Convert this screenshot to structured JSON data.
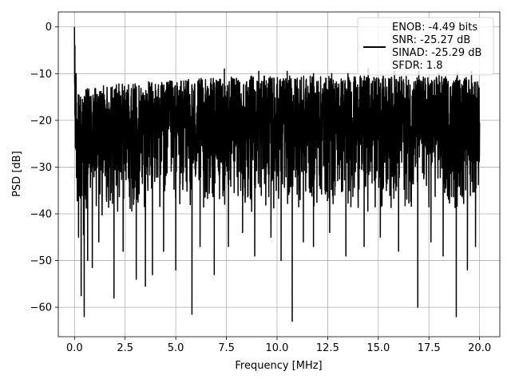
{
  "chart_data": {
    "type": "line",
    "xlabel": "Frequency [MHz]",
    "ylabel": "PSD [dB]",
    "xlim": [
      -0.8,
      21.0
    ],
    "ylim": [
      -66.3,
      3.2
    ],
    "xticks": [
      0.0,
      2.5,
      5.0,
      7.5,
      10.0,
      12.5,
      15.0,
      17.5,
      20.0
    ],
    "xtick_labels": [
      "0.0",
      "2.5",
      "5.0",
      "7.5",
      "10.0",
      "12.5",
      "15.0",
      "17.5",
      "20.0"
    ],
    "yticks": [
      0,
      -10,
      -20,
      -30,
      -40,
      -50,
      -60
    ],
    "ytick_labels": [
      "0",
      "−10",
      "−20",
      "−30",
      "−40",
      "−50",
      "−60"
    ],
    "grid": true,
    "legend_position": "top-right",
    "legend_lines": [
      "ENOB: -4.49 bits",
      "SNR: -25.27 dB",
      "SINAD: -25.29 dB",
      "SFDR: 1.8"
    ],
    "series": [
      {
        "color": "#000000",
        "x": [
          0.0,
          0.02,
          0.05,
          0.1,
          0.2,
          0.4,
          0.6,
          1.0,
          2.0,
          3.0,
          4.0,
          5.0,
          6.0,
          7.0,
          8.0,
          9.0,
          10.0,
          11.0,
          12.0,
          13.0,
          14.0,
          15.0,
          16.0,
          17.0,
          18.0,
          19.0,
          20.0
        ],
        "y_upper": [
          0,
          -5,
          -12,
          -13,
          -14,
          -14,
          -13,
          -13,
          -12,
          -12,
          -11.5,
          -11.5,
          -11,
          -11,
          -10.5,
          -10.5,
          -10.5,
          -10.5,
          -10.5,
          -10.5,
          -10.5,
          -10.5,
          -10.5,
          -10.5,
          -10.5,
          -10.5,
          -11
        ],
        "y_lower": [
          -30,
          -37,
          -40,
          -42,
          -44,
          -46,
          -45,
          -42,
          -41,
          -40,
          -40,
          -40,
          -40,
          -40,
          -40,
          -40,
          -40,
          -40,
          -40,
          -40,
          -40,
          -40,
          -40,
          -40,
          -40,
          -41,
          -36
        ],
        "notable_dips": [
          [
            0.2,
            -45
          ],
          [
            0.33,
            -57.5
          ],
          [
            0.48,
            -62
          ],
          [
            0.65,
            -50
          ],
          [
            0.88,
            -51.5
          ],
          [
            1.2,
            -46
          ],
          [
            1.95,
            -58
          ],
          [
            2.4,
            -48
          ],
          [
            3.05,
            -54
          ],
          [
            3.5,
            -55.5
          ],
          [
            3.85,
            -53
          ],
          [
            4.4,
            -48
          ],
          [
            5.0,
            -52
          ],
          [
            5.8,
            -61.5
          ],
          [
            6.2,
            -47
          ],
          [
            6.9,
            -53
          ],
          [
            7.6,
            -47
          ],
          [
            8.3,
            -44
          ],
          [
            8.9,
            -49
          ],
          [
            9.7,
            -45
          ],
          [
            10.2,
            -50
          ],
          [
            10.75,
            -63
          ],
          [
            11.3,
            -46
          ],
          [
            11.8,
            -47
          ],
          [
            12.6,
            -44
          ],
          [
            13.4,
            -49
          ],
          [
            14.3,
            -47
          ],
          [
            15.1,
            -45
          ],
          [
            16.0,
            -48
          ],
          [
            16.95,
            -60
          ],
          [
            17.6,
            -46
          ],
          [
            18.2,
            -49
          ],
          [
            18.85,
            -62
          ],
          [
            19.4,
            -52
          ],
          [
            19.8,
            -47
          ]
        ],
        "notable_peaks": [
          [
            0.0,
            0
          ],
          [
            0.02,
            -4
          ],
          [
            0.08,
            -10
          ],
          [
            0.3,
            -15
          ],
          [
            1.8,
            -13
          ],
          [
            2.6,
            -13.5
          ],
          [
            3.7,
            -12
          ],
          [
            4.6,
            -12
          ],
          [
            5.5,
            -11.5
          ],
          [
            6.9,
            -12
          ],
          [
            7.4,
            -9
          ],
          [
            8.0,
            -11
          ],
          [
            9.1,
            -9.5
          ],
          [
            9.6,
            -11
          ],
          [
            10.5,
            -9.5
          ],
          [
            11.0,
            -11
          ],
          [
            11.8,
            -10
          ],
          [
            12.7,
            -10
          ],
          [
            13.5,
            -10
          ],
          [
            14.5,
            -9
          ],
          [
            15.0,
            -11
          ],
          [
            15.8,
            -9.5
          ],
          [
            17.0,
            -9.5
          ],
          [
            18.0,
            -10
          ],
          [
            18.9,
            -10
          ],
          [
            19.6,
            -9.5
          ]
        ]
      }
    ]
  }
}
